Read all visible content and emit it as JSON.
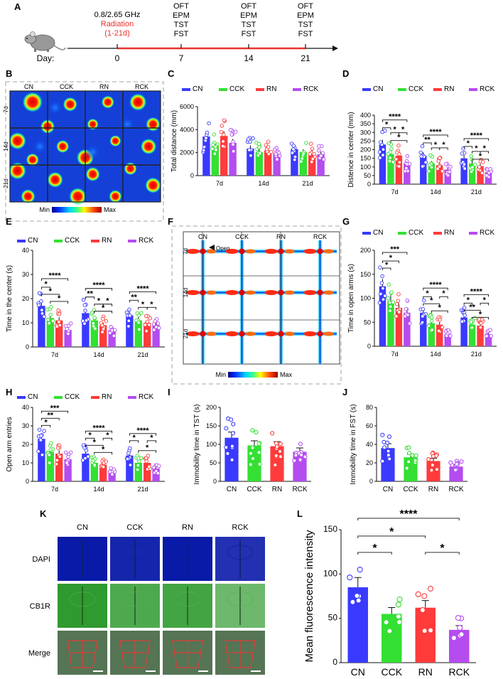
{
  "colors": {
    "CN": "#3a3aff",
    "CCK": "#33e033",
    "RN": "#ff3b3b",
    "RCK": "#b44cf0"
  },
  "panel_labels": [
    "A",
    "B",
    "C",
    "D",
    "E",
    "F",
    "G",
    "H",
    "I",
    "J",
    "K",
    "L"
  ],
  "timeline": {
    "day_label": "Day:",
    "freq": "0.8/2.65 GHz",
    "radiation": "Radiation",
    "radiation_range": "(1-21d)",
    "days": [
      "0",
      "7",
      "14",
      "21"
    ],
    "tests": [
      "OFT",
      "EPM",
      "TST",
      "FST"
    ]
  },
  "groups": [
    "CN",
    "CCK",
    "RN",
    "RCK"
  ],
  "days_x": [
    "7d",
    "14d",
    "21d"
  ],
  "heatmap": {
    "rows": [
      "7d",
      "14d",
      "21d"
    ],
    "min": "Min",
    "max": "Max",
    "open_label": "Open"
  },
  "if_panel": {
    "rows": [
      "DAPI",
      "CB1R",
      "Merge"
    ]
  },
  "sig": {
    "s1": "*",
    "s2": "**",
    "s3": "***",
    "s4": "****"
  },
  "chart_data": [
    {
      "id": "C",
      "type": "bar",
      "title": "",
      "ylabel": "Total distance (mm)",
      "ylim": [
        0,
        6000
      ],
      "yticks": [
        "0",
        "2000",
        "4000",
        "6000"
      ],
      "categories": [
        "7d",
        "14d",
        "21d"
      ],
      "series": [
        {
          "name": "CN",
          "values": [
            3400,
            2350,
            2300
          ]
        },
        {
          "name": "CCK",
          "values": [
            2600,
            2050,
            2050
          ]
        },
        {
          "name": "RN",
          "values": [
            3450,
            2200,
            2000
          ]
        },
        {
          "name": "RCK",
          "values": [
            2850,
            2000,
            1850
          ]
        }
      ]
    },
    {
      "id": "D",
      "type": "bar",
      "title": "",
      "ylabel": "Distence in center (mm)",
      "ylim": [
        0,
        400
      ],
      "yticks": [
        "0",
        "50",
        "100",
        "150",
        "200",
        "250",
        "300",
        "350",
        "400"
      ],
      "categories": [
        "7d",
        "14d",
        "21d"
      ],
      "series": [
        {
          "name": "CN",
          "values": [
            230,
            165,
            150
          ]
        },
        {
          "name": "CCK",
          "values": [
            175,
            120,
            120
          ]
        },
        {
          "name": "RN",
          "values": [
            165,
            110,
            105
          ]
        },
        {
          "name": "RCK",
          "values": [
            120,
            85,
            70
          ]
        }
      ]
    },
    {
      "id": "E",
      "type": "bar",
      "title": "",
      "ylabel": "Time in the center (s)",
      "ylim": [
        0,
        40
      ],
      "yticks": [
        "0",
        "10",
        "20",
        "30",
        "40"
      ],
      "categories": [
        "7d",
        "14d",
        "21d"
      ],
      "series": [
        {
          "name": "CN",
          "values": [
            17,
            14,
            13
          ]
        },
        {
          "name": "CCK",
          "values": [
            12,
            11,
            11
          ]
        },
        {
          "name": "RN",
          "values": [
            11,
            9,
            10
          ]
        },
        {
          "name": "RCK",
          "values": [
            7,
            7,
            9
          ]
        }
      ]
    },
    {
      "id": "G",
      "type": "bar",
      "title": "",
      "ylabel": "Time in open arms (s)",
      "ylim": [
        0,
        200
      ],
      "yticks": [
        "0",
        "50",
        "100",
        "150",
        "200"
      ],
      "categories": [
        "7d",
        "14d",
        "21d"
      ],
      "series": [
        {
          "name": "CN",
          "values": [
            125,
            70,
            60
          ]
        },
        {
          "name": "CCK",
          "values": [
            95,
            48,
            45
          ]
        },
        {
          "name": "RN",
          "values": [
            80,
            45,
            43
          ]
        },
        {
          "name": "RCK",
          "values": [
            70,
            25,
            25
          ]
        }
      ]
    },
    {
      "id": "H",
      "type": "bar",
      "title": "",
      "ylabel": "Open arm entries",
      "ylim": [
        0,
        40
      ],
      "yticks": [
        "0",
        "10",
        "20",
        "30",
        "40"
      ],
      "categories": [
        "7d",
        "14d",
        "21d"
      ],
      "series": [
        {
          "name": "CN",
          "values": [
            23,
            15,
            14
          ]
        },
        {
          "name": "CCK",
          "values": [
            16,
            10,
            10
          ]
        },
        {
          "name": "RN",
          "values": [
            15,
            9,
            10
          ]
        },
        {
          "name": "RCK",
          "values": [
            12,
            6,
            7
          ]
        }
      ]
    },
    {
      "id": "I",
      "type": "bar",
      "title": "",
      "ylabel": "Immobility time in TST (s)",
      "ylim": [
        0,
        200
      ],
      "yticks": [
        "0",
        "50",
        "100",
        "150",
        "200"
      ],
      "categories": [
        "CN",
        "CCK",
        "RN",
        "RCK"
      ],
      "values": [
        118,
        97,
        95,
        80
      ]
    },
    {
      "id": "J",
      "type": "bar",
      "title": "",
      "ylabel": "Immobility time in FST (s)",
      "ylim": [
        0,
        80
      ],
      "yticks": [
        "0",
        "20",
        "40",
        "60",
        "80"
      ],
      "categories": [
        "CN",
        "CCK",
        "RN",
        "RCK"
      ],
      "values": [
        36,
        26,
        22,
        16
      ]
    },
    {
      "id": "L",
      "type": "bar",
      "title": "",
      "ylabel": "Mean fluorescence intensity",
      "ylim": [
        0,
        150
      ],
      "yticks": [
        "0",
        "50",
        "100",
        "150"
      ],
      "categories": [
        "CN",
        "CCK",
        "RN",
        "RCK"
      ],
      "values": [
        85,
        55,
        62,
        37
      ]
    }
  ]
}
